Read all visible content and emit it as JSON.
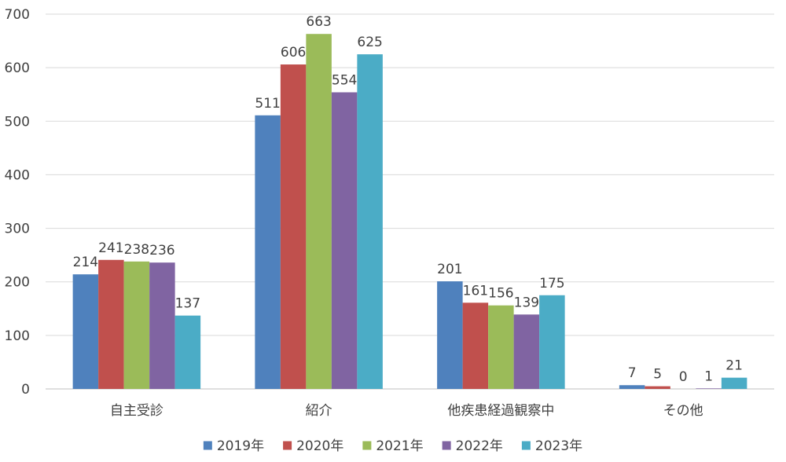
{
  "chart_data": {
    "type": "bar",
    "categories": [
      "自主受診",
      "紹介",
      "他疾患経過観察中",
      "その他"
    ],
    "series": [
      {
        "name": "2019年",
        "color": "#4f81bd",
        "values": [
          214,
          511,
          201,
          7
        ]
      },
      {
        "name": "2020年",
        "color": "#c0504d",
        "values": [
          241,
          606,
          161,
          5
        ]
      },
      {
        "name": "2021年",
        "color": "#9bbb59",
        "values": [
          238,
          663,
          156,
          0
        ]
      },
      {
        "name": "2022年",
        "color": "#8064a2",
        "values": [
          236,
          554,
          139,
          1
        ]
      },
      {
        "name": "2023年",
        "color": "#4bacc6",
        "values": [
          137,
          625,
          175,
          21
        ]
      }
    ],
    "y_ticks": [
      "0",
      "100",
      "200",
      "300",
      "400",
      "500",
      "600",
      "700"
    ],
    "ylim": [
      0,
      700
    ],
    "grid": true,
    "legend_position": "bottom"
  }
}
